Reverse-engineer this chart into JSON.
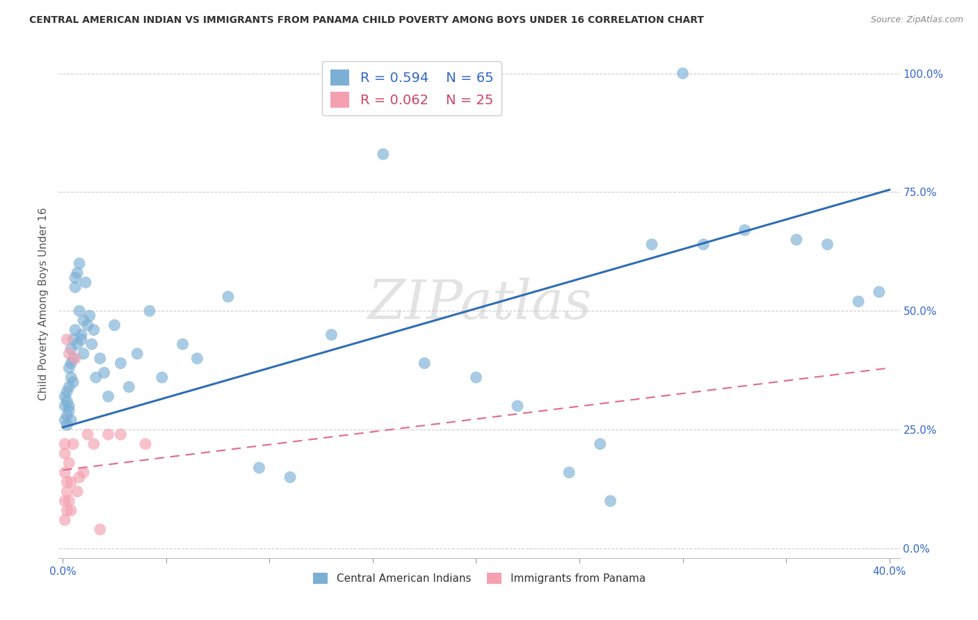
{
  "title": "CENTRAL AMERICAN INDIAN VS IMMIGRANTS FROM PANAMA CHILD POVERTY AMONG BOYS UNDER 16 CORRELATION CHART",
  "source": "Source: ZipAtlas.com",
  "ylabel": "Child Poverty Among Boys Under 16",
  "ytick_labels": [
    "0.0%",
    "25.0%",
    "50.0%",
    "75.0%",
    "100.0%"
  ],
  "ytick_values": [
    0.0,
    0.25,
    0.5,
    0.75,
    1.0
  ],
  "xtick_values": [
    0.0,
    0.05,
    0.1,
    0.15,
    0.2,
    0.25,
    0.3,
    0.35,
    0.4
  ],
  "xlim": [
    -0.002,
    0.405
  ],
  "ylim": [
    -0.02,
    1.05
  ],
  "legend_blue_r": "R = 0.594",
  "legend_blue_n": "N = 65",
  "legend_pink_r": "R = 0.062",
  "legend_pink_n": "N = 25",
  "legend_label_blue": "Central American Indians",
  "legend_label_pink": "Immigrants from Panama",
  "blue_color": "#7BAFD4",
  "pink_color": "#F4A0B0",
  "trendline_blue_color": "#2E6DB4",
  "trendline_pink_color": "#E07090",
  "watermark": "ZIPatlas",
  "blue_x": [
    0.001,
    0.001,
    0.001,
    0.002,
    0.002,
    0.002,
    0.002,
    0.003,
    0.003,
    0.003,
    0.003,
    0.004,
    0.004,
    0.004,
    0.004,
    0.005,
    0.005,
    0.005,
    0.006,
    0.006,
    0.006,
    0.007,
    0.007,
    0.008,
    0.008,
    0.009,
    0.009,
    0.01,
    0.01,
    0.011,
    0.012,
    0.013,
    0.014,
    0.015,
    0.016,
    0.018,
    0.02,
    0.022,
    0.025,
    0.028,
    0.032,
    0.036,
    0.042,
    0.048,
    0.058,
    0.065,
    0.08,
    0.095,
    0.11,
    0.13,
    0.155,
    0.175,
    0.2,
    0.22,
    0.245,
    0.265,
    0.285,
    0.31,
    0.33,
    0.355,
    0.37,
    0.385,
    0.395,
    0.26,
    0.3
  ],
  "blue_y": [
    0.3,
    0.27,
    0.32,
    0.28,
    0.31,
    0.26,
    0.33,
    0.3,
    0.29,
    0.34,
    0.38,
    0.42,
    0.39,
    0.36,
    0.27,
    0.4,
    0.35,
    0.44,
    0.57,
    0.55,
    0.46,
    0.58,
    0.43,
    0.6,
    0.5,
    0.44,
    0.45,
    0.48,
    0.41,
    0.56,
    0.47,
    0.49,
    0.43,
    0.46,
    0.36,
    0.4,
    0.37,
    0.32,
    0.47,
    0.39,
    0.34,
    0.41,
    0.5,
    0.36,
    0.43,
    0.4,
    0.53,
    0.17,
    0.15,
    0.45,
    0.83,
    0.39,
    0.36,
    0.3,
    0.16,
    0.1,
    0.64,
    0.64,
    0.67,
    0.65,
    0.64,
    0.52,
    0.54,
    0.22,
    1.0
  ],
  "pink_x": [
    0.001,
    0.001,
    0.001,
    0.001,
    0.001,
    0.002,
    0.002,
    0.002,
    0.002,
    0.003,
    0.003,
    0.003,
    0.004,
    0.004,
    0.005,
    0.006,
    0.007,
    0.008,
    0.01,
    0.012,
    0.015,
    0.018,
    0.022,
    0.028,
    0.04
  ],
  "pink_y": [
    0.2,
    0.16,
    0.1,
    0.06,
    0.22,
    0.14,
    0.08,
    0.12,
    0.44,
    0.41,
    0.18,
    0.1,
    0.14,
    0.08,
    0.22,
    0.4,
    0.12,
    0.15,
    0.16,
    0.24,
    0.22,
    0.04,
    0.24,
    0.24,
    0.22
  ],
  "blue_trend_x0": 0.0,
  "blue_trend_y0": 0.255,
  "blue_trend_x1": 0.4,
  "blue_trend_y1": 0.755,
  "pink_trend_x0": 0.0,
  "pink_trend_y0": 0.165,
  "pink_trend_x1": 0.4,
  "pink_trend_y1": 0.38
}
